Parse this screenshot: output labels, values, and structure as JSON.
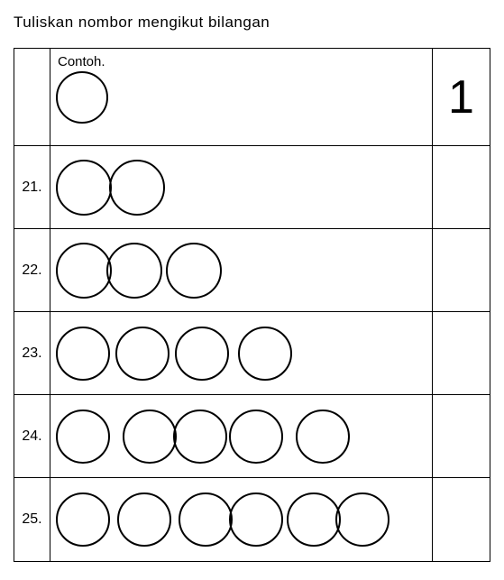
{
  "title": "Tuliskan  nombor mengikut bilangan",
  "example_label": "Contoh.",
  "example_answer": "1",
  "colors": {
    "background": "#ffffff",
    "line": "#000000",
    "circle_stroke": "#000000",
    "text": "#000000"
  },
  "circle_stroke_width": 2,
  "rows": [
    {
      "is_example": true,
      "number": "",
      "circle_count": 1,
      "circle_diameter": 58,
      "gaps": [
        0
      ],
      "answer": "1"
    },
    {
      "is_example": false,
      "number": "21.",
      "circle_count": 2,
      "circle_diameter": 62,
      "gaps": [
        0,
        -3
      ],
      "answer": ""
    },
    {
      "is_example": false,
      "number": "22.",
      "circle_count": 3,
      "circle_diameter": 62,
      "gaps": [
        0,
        -6,
        4
      ],
      "answer": ""
    },
    {
      "is_example": false,
      "number": "23.",
      "circle_count": 4,
      "circle_diameter": 60,
      "gaps": [
        0,
        6,
        6,
        10
      ],
      "answer": ""
    },
    {
      "is_example": false,
      "number": "24.",
      "circle_count": 5,
      "circle_diameter": 60,
      "gaps": [
        0,
        14,
        -4,
        2,
        14
      ],
      "answer": ""
    },
    {
      "is_example": false,
      "number": "25.",
      "circle_count": 6,
      "circle_diameter": 60,
      "gaps": [
        0,
        8,
        8,
        -4,
        4,
        -6
      ],
      "answer": ""
    }
  ]
}
